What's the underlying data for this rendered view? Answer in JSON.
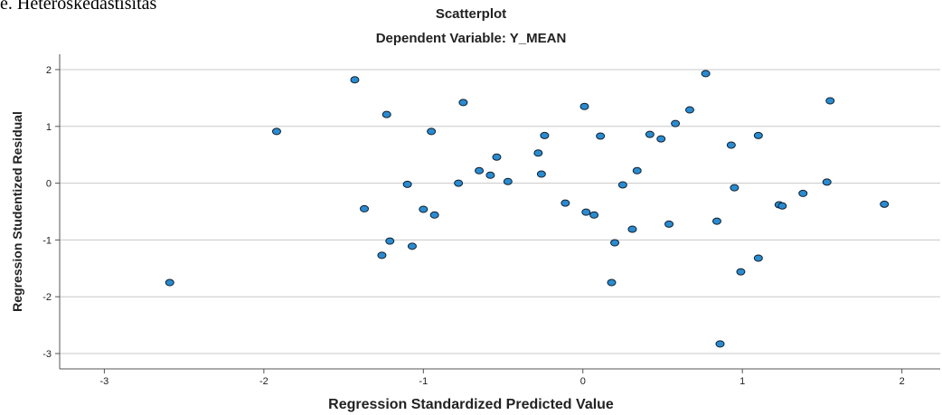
{
  "caption": "e. Heteroskedastisitas",
  "chart_data": {
    "type": "scatter",
    "title": "Scatterplot",
    "subtitle": "Dependent Variable: Y_MEAN",
    "x_label": "Regression Standardized Predicted Value",
    "y_label": "Regression Studentized Residual",
    "xlim": [
      -3.28,
      2.24
    ],
    "ylim": [
      -3.27,
      2.27
    ],
    "xticks": [
      -3,
      -2,
      -1,
      0,
      1,
      2
    ],
    "yticks": [
      -3,
      -2,
      -1,
      0,
      1,
      2
    ],
    "grid": true,
    "color": "#2a8bd0",
    "x": [
      -2.59,
      -1.92,
      -1.43,
      -1.23,
      -1.37,
      -1.21,
      -1.26,
      -1.1,
      -1.07,
      -1.0,
      -0.93,
      -0.95,
      -0.75,
      -0.78,
      -0.65,
      -0.58,
      -0.54,
      -0.47,
      -0.28,
      -0.26,
      -0.24,
      -0.11,
      0.01,
      0.02,
      0.07,
      0.11,
      0.18,
      0.2,
      0.25,
      0.31,
      0.34,
      0.42,
      0.49,
      0.54,
      0.58,
      0.67,
      0.77,
      0.84,
      0.86,
      0.93,
      0.95,
      0.99,
      1.1,
      1.1,
      1.23,
      1.25,
      1.38,
      1.53,
      1.55,
      1.89
    ],
    "values": [
      -1.75,
      0.91,
      1.82,
      1.21,
      -0.45,
      -1.02,
      -1.27,
      -0.02,
      -1.11,
      -0.46,
      -0.56,
      0.91,
      1.42,
      0.0,
      0.22,
      0.14,
      0.46,
      0.03,
      0.53,
      0.16,
      0.84,
      -0.35,
      1.35,
      -0.51,
      -0.56,
      0.83,
      -1.75,
      -1.05,
      -0.03,
      -0.81,
      0.22,
      0.86,
      0.78,
      -0.72,
      1.05,
      1.29,
      1.93,
      -0.67,
      -2.83,
      0.67,
      -0.08,
      -1.56,
      0.84,
      -1.32,
      -0.38,
      -0.4,
      -0.18,
      0.02,
      1.45,
      -0.37
    ]
  }
}
